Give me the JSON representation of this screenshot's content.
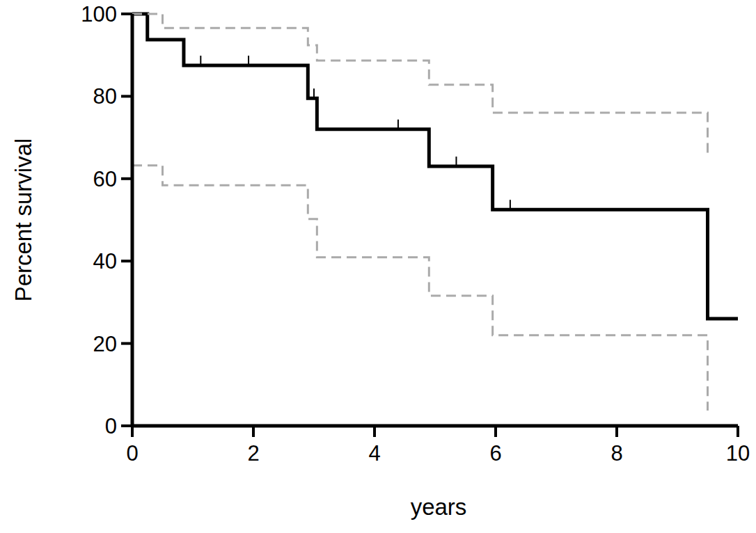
{
  "chart_data": {
    "type": "line",
    "x_label": "years",
    "y_label": "Percent survival",
    "xlim": [
      0,
      10
    ],
    "ylim": [
      0,
      100
    ],
    "xticks": [
      0,
      2,
      4,
      6,
      8,
      10
    ],
    "yticks": [
      0,
      20,
      40,
      60,
      80,
      100
    ],
    "grid": false,
    "series": [
      {
        "color": "#000000",
        "line_style": "step",
        "marker": "none",
        "x": [
          0,
          0.25,
          0.85,
          2.9,
          3.05,
          4.9,
          5.95,
          9.5,
          10
        ],
        "values": [
          100,
          93.75,
          87.5,
          79.5,
          72,
          63,
          52.5,
          26,
          26
        ]
      },
      {
        "color": "#aaaaaa",
        "line_style": "dashed-step",
        "marker": "none",
        "x": [
          0,
          0.5,
          2.9,
          3.05,
          4.9,
          5.95,
          9.5
        ],
        "values": [
          100,
          96.6,
          92.4,
          88.7,
          82.8,
          76,
          66
        ]
      },
      {
        "color": "#aaaaaa",
        "line_style": "dashed-step",
        "marker": "none",
        "x": [
          0,
          0.5,
          2.9,
          3.05,
          4.9,
          5.95,
          9.5
        ],
        "values": [
          63.2,
          58.4,
          50.2,
          40.9,
          31.6,
          22,
          3.7
        ]
      },
      {
        "type": "scatter",
        "color": "#000000",
        "marker": "tick",
        "x": [
          1.13,
          1.92,
          3.0,
          4.39,
          5.35,
          6.24
        ],
        "values": [
          87.5,
          87.5,
          79.5,
          72,
          63,
          52.5
        ]
      }
    ]
  }
}
